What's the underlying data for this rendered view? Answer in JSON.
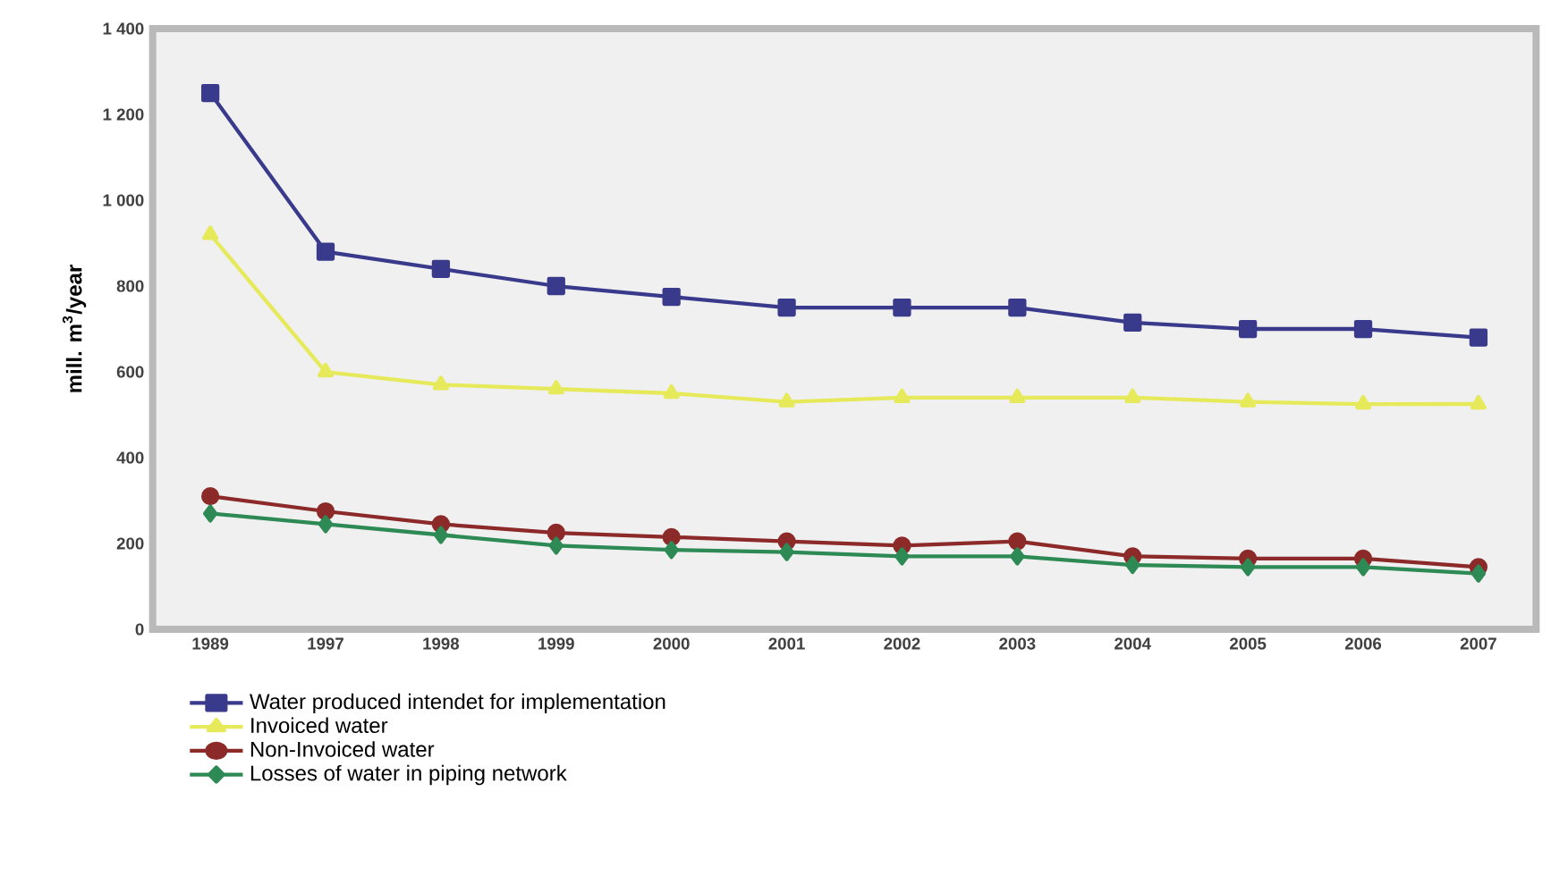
{
  "chart_data": {
    "type": "line",
    "ylabel": "mill. m$^{3}$/year",
    "categories": [
      "1989",
      "1997",
      "1998",
      "1999",
      "2000",
      "2001",
      "2002",
      "2003",
      "2004",
      "2005",
      "2006",
      "2007"
    ],
    "series": [
      {
        "name": "Water produced intendet for implementation",
        "color": "#3a3a8c",
        "marker": "square",
        "values": [
          1250,
          880,
          840,
          800,
          775,
          750,
          750,
          750,
          715,
          700,
          700,
          680
        ]
      },
      {
        "name": "Invoiced water",
        "color": "#e6ea5a",
        "marker": "triangle",
        "values": [
          920,
          600,
          570,
          560,
          550,
          530,
          540,
          540,
          540,
          530,
          525,
          525
        ]
      },
      {
        "name": "Non-Invoiced water",
        "color": "#8c2a2a",
        "marker": "circle",
        "values": [
          310,
          275,
          245,
          225,
          215,
          205,
          195,
          205,
          170,
          165,
          165,
          145
        ]
      },
      {
        "name": "Losses of water in piping network",
        "color": "#2e8a55",
        "marker": "diamond",
        "values": [
          270,
          245,
          220,
          195,
          185,
          180,
          170,
          170,
          150,
          145,
          145,
          130
        ]
      }
    ],
    "ylim": [
      0,
      1400
    ],
    "yticks": [
      0,
      200,
      400,
      600,
      800,
      {
        "value": 1000,
        "label": "1 000"
      },
      {
        "value": 1200,
        "label": "1 200"
      },
      {
        "value": 1400,
        "label": "1 400"
      }
    ],
    "grid": false,
    "legend": "bottom",
    "line_style": "solid"
  }
}
